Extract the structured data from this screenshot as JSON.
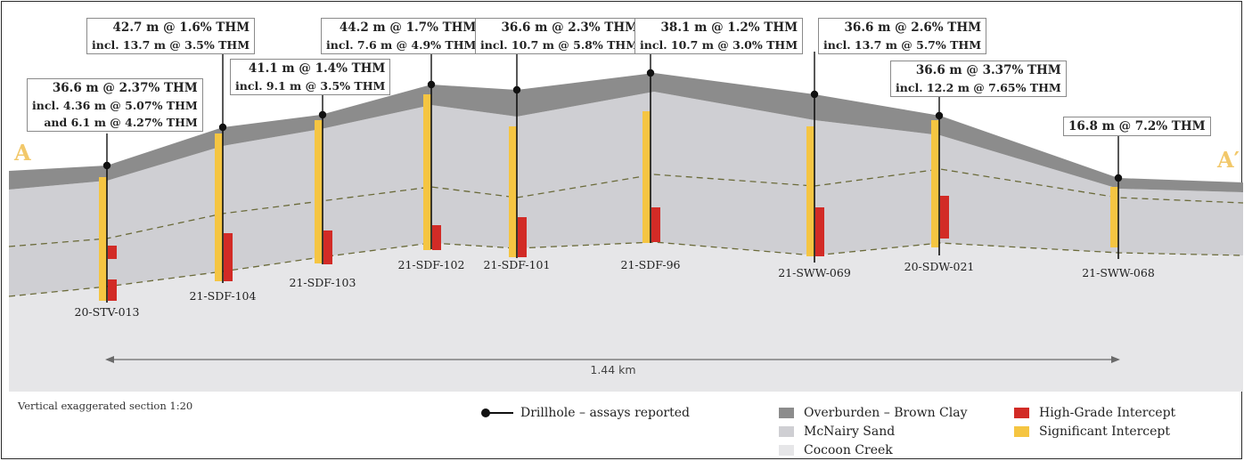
{
  "section": {
    "end_left": "A",
    "end_right": "A′",
    "scale_text": "1.44 km",
    "note": "Vertical exaggerated section 1:20"
  },
  "colors": {
    "overburden": "#8c8c8c",
    "mcnairy": "#cfcfd3",
    "cocoon": "#e6e6e8",
    "high_grade": "#d22b26",
    "significant": "#f5c542",
    "contact_line": "#6b6b3a",
    "section_letters": "#f2c86a"
  },
  "drillholes": [
    {
      "id": "20-STV-013",
      "callout": [
        "36.6 m @ 2.37% THM",
        "incl. 4.36 m @ 5.07% THM",
        "and 6.1 m @ 4.27% THM"
      ]
    },
    {
      "id": "21-SDF-104",
      "callout": [
        "42.7 m @ 1.6% THM",
        "incl. 13.7 m @ 3.5% THM"
      ]
    },
    {
      "id": "21-SDF-103",
      "callout": [
        "41.1 m @ 1.4% THM",
        "incl. 9.1 m @ 3.5% THM"
      ]
    },
    {
      "id": "21-SDF-102",
      "callout": [
        "44.2 m @ 1.7% THM",
        "incl. 7.6 m @ 4.9% THM"
      ]
    },
    {
      "id": "21-SDF-101",
      "callout": [
        "36.6 m @ 2.3% THM",
        "incl. 10.7 m @ 5.8% THM"
      ]
    },
    {
      "id": "21-SDF-96",
      "callout": [
        "38.1 m @ 1.2% THM",
        "incl. 10.7 m @ 3.0% THM"
      ]
    },
    {
      "id": "21-SWW-069",
      "callout": [
        "36.6 m @ 2.6% THM",
        "incl. 13.7 m @ 5.7% THM"
      ]
    },
    {
      "id": "20-SDW-021",
      "callout": [
        "36.6 m @ 3.37% THM",
        "incl. 12.2 m @ 7.65% THM"
      ]
    },
    {
      "id": "21-SWW-068",
      "callout": [
        "16.8 m @ 7.2% THM"
      ]
    }
  ],
  "legend": {
    "drillhole": "Drillhole – assays reported",
    "overburden": "Overburden – Brown Clay",
    "mcnairy": "McNairy Sand",
    "cocoon": "Cocoon Creek",
    "high_grade": "High-Grade Intercept",
    "significant": "Significant Intercept"
  }
}
